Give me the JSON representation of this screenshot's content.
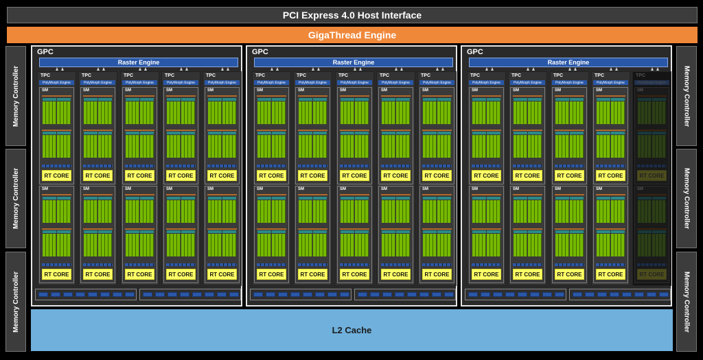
{
  "header": {
    "host_interface": "PCI Express 4.0 Host Interface",
    "giga_thread": "GigaThread Engine"
  },
  "memory_controller_label": "Memory Controller",
  "l2_cache": "L2 Cache",
  "gpc": {
    "label": "GPC",
    "raster_engine": "Raster Engine",
    "tpc_label": "TPC",
    "polymorph_engine": "PolyMorph Engine",
    "sm_label": "SM",
    "rt_core": "RT CORE"
  },
  "gpcs": [
    {
      "tpcs": [
        true,
        true,
        true,
        true,
        true
      ]
    },
    {
      "tpcs": [
        true,
        true,
        true,
        true,
        true
      ]
    },
    {
      "tpcs": [
        true,
        true,
        true,
        true,
        false
      ]
    }
  ],
  "colors": {
    "host_interface": "#3c3c3c",
    "giga_thread": "#f0883a",
    "raster_engine": "#2a58a8",
    "cuda_cores": "#76b900",
    "rt_core": "#ffff66",
    "l2_cache": "#6fb0dc"
  }
}
